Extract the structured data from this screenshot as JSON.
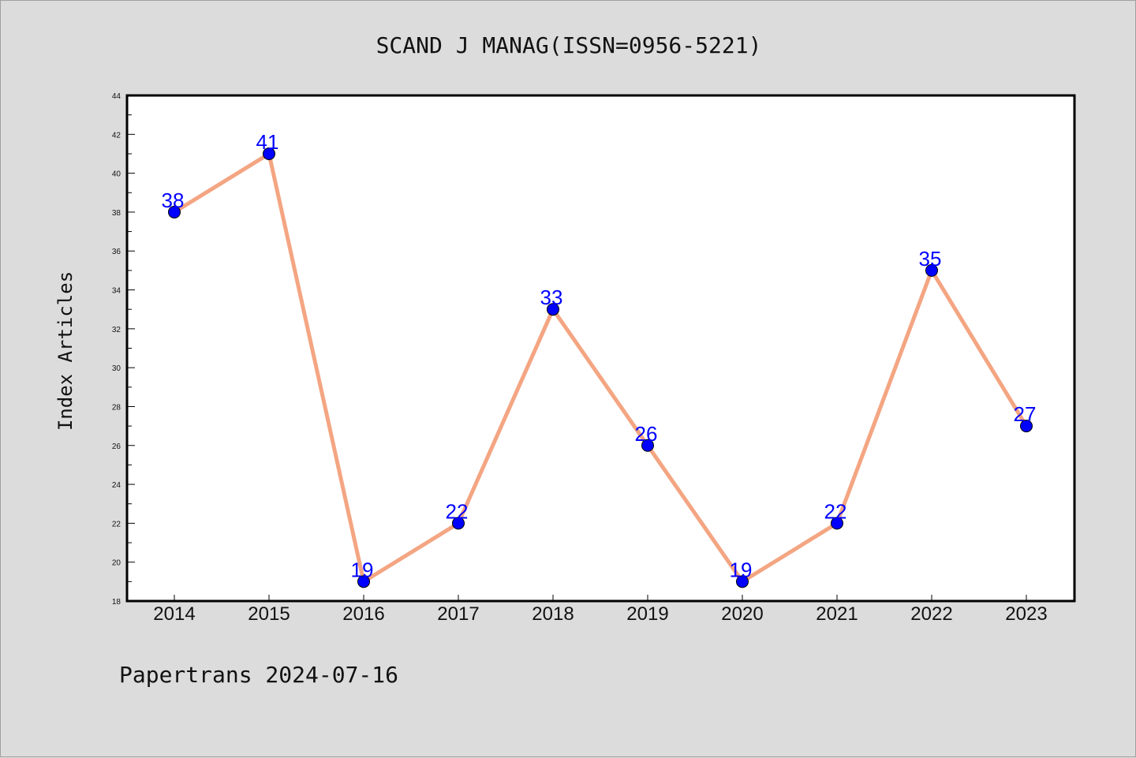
{
  "chart_data": {
    "type": "line",
    "title": "SCAND J MANAG(ISSN=0956-5221)",
    "ylabel": "Index Articles",
    "xlabel": "",
    "x": [
      "2014",
      "2015",
      "2016",
      "2017",
      "2018",
      "2019",
      "2020",
      "2021",
      "2022",
      "2023"
    ],
    "series": [
      {
        "values": [
          38,
          41,
          19,
          22,
          33,
          26,
          19,
          22,
          35,
          27
        ]
      }
    ],
    "ylim": [
      18,
      44
    ],
    "yticks": [
      "18",
      "20",
      "22",
      "24",
      "26",
      "28",
      "30",
      "32",
      "34",
      "36",
      "38",
      "40",
      "42",
      "44"
    ],
    "grid": false,
    "line_color": "#f4a582",
    "marker_color": "#0000ff",
    "label_color": "#0000ff"
  },
  "footer": "Papertrans 2024-07-16"
}
